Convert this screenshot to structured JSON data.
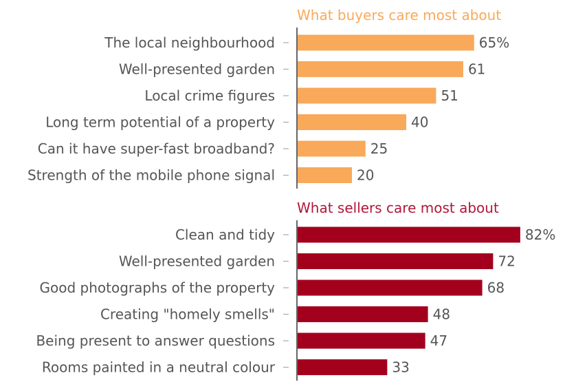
{
  "chart_data": [
    {
      "type": "bar",
      "orientation": "horizontal",
      "title": "What buyers care most about",
      "color": "#F9A95A",
      "title_color": "#F9A95A",
      "categories": [
        "The local neighbourhood",
        "Well-presented garden",
        "Local crime figures",
        "Long term potential of a property",
        "Can it have super-fast broadband?",
        "Strength of the mobile phone signal"
      ],
      "values": [
        65,
        61,
        51,
        40,
        25,
        20
      ],
      "value_labels": [
        "65%",
        "61",
        "51",
        "40",
        "25",
        "20"
      ]
    },
    {
      "type": "bar",
      "orientation": "horizontal",
      "title": "What sellers care most about",
      "color": "#A3001E",
      "title_color": "#B0173A",
      "categories": [
        "Clean and tidy",
        "Well-presented garden",
        "Good photographs of the property",
        "Creating \"homely smells\"",
        "Being present to answer questions",
        "Rooms painted in a neutral colour"
      ],
      "values": [
        82,
        72,
        68,
        48,
        47,
        33
      ],
      "value_labels": [
        "82%",
        "72",
        "68",
        "48",
        "47",
        "33"
      ]
    }
  ]
}
